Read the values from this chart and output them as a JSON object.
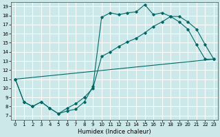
{
  "xlabel": "Humidex (Indice chaleur)",
  "bg_color": "#cce8e8",
  "grid_color": "#ffffff",
  "line_color": "#006666",
  "xlim": [
    -0.5,
    23.5
  ],
  "ylim": [
    6.5,
    19.5
  ],
  "xticks": [
    0,
    1,
    2,
    3,
    4,
    5,
    6,
    7,
    8,
    9,
    10,
    11,
    12,
    13,
    14,
    15,
    16,
    17,
    18,
    19,
    20,
    21,
    22,
    23
  ],
  "yticks": [
    7,
    8,
    9,
    10,
    11,
    12,
    13,
    14,
    15,
    16,
    17,
    18,
    19
  ],
  "curve1_x": [
    0,
    1,
    2,
    3,
    4,
    5,
    6,
    7,
    8,
    9,
    10,
    11,
    12,
    13,
    14,
    15,
    16,
    17,
    18,
    19,
    20,
    21,
    22,
    23
  ],
  "curve1_y": [
    11.0,
    8.5,
    8.0,
    8.5,
    7.8,
    7.2,
    7.5,
    7.7,
    8.5,
    10.2,
    17.8,
    18.3,
    18.1,
    18.3,
    18.4,
    19.2,
    18.1,
    18.3,
    17.9,
    17.3,
    16.5,
    14.8,
    13.2,
    13.2
  ],
  "curve2_x": [
    0,
    23
  ],
  "curve2_y": [
    11.0,
    13.2
  ],
  "curve3_x": [
    0,
    1,
    2,
    3,
    4,
    5,
    6,
    7,
    8,
    9,
    10,
    11,
    12,
    13,
    14,
    15,
    16,
    17,
    18,
    19,
    20,
    21,
    22,
    23
  ],
  "curve3_y": [
    11.0,
    8.5,
    8.0,
    8.5,
    7.8,
    7.2,
    7.8,
    8.3,
    9.0,
    10.0,
    13.5,
    14.0,
    14.6,
    15.1,
    15.5,
    16.1,
    16.8,
    17.3,
    17.9,
    17.9,
    17.3,
    16.5,
    14.8,
    13.2
  ]
}
